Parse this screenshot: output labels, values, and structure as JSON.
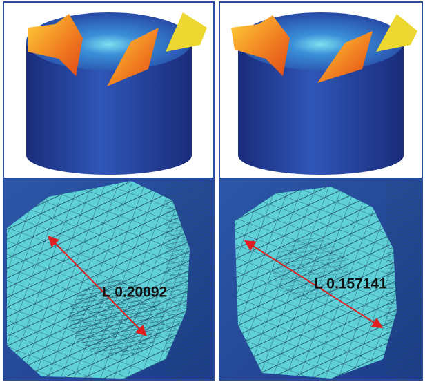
{
  "panels": [
    {
      "label": "L 0.20092"
    },
    {
      "label": "L 0.157141"
    }
  ]
}
